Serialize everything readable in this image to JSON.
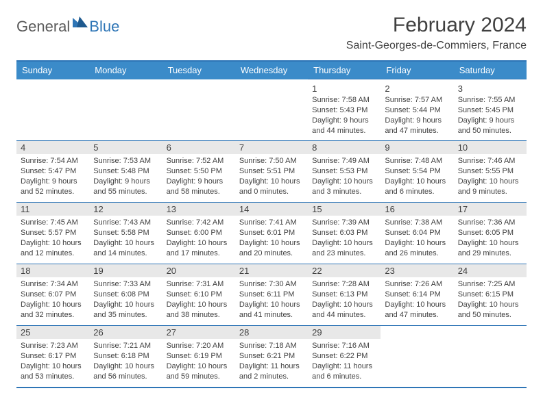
{
  "logo": {
    "word1": "General",
    "word2": "Blue",
    "icon_color": "#2e75b6"
  },
  "title": "February 2024",
  "location": "Saint-Georges-de-Commiers, France",
  "colors": {
    "header_bg": "#3b8bc9",
    "border": "#2e75b6",
    "daynum_bg": "#e8e8e8",
    "text": "#404040"
  },
  "weekdays": [
    "Sunday",
    "Monday",
    "Tuesday",
    "Wednesday",
    "Thursday",
    "Friday",
    "Saturday"
  ],
  "weeks": [
    [
      null,
      null,
      null,
      null,
      {
        "n": "1",
        "sr": "Sunrise: 7:58 AM",
        "ss": "Sunset: 5:43 PM",
        "d1": "Daylight: 9 hours",
        "d2": "and 44 minutes.",
        "shade": false
      },
      {
        "n": "2",
        "sr": "Sunrise: 7:57 AM",
        "ss": "Sunset: 5:44 PM",
        "d1": "Daylight: 9 hours",
        "d2": "and 47 minutes.",
        "shade": false
      },
      {
        "n": "3",
        "sr": "Sunrise: 7:55 AM",
        "ss": "Sunset: 5:45 PM",
        "d1": "Daylight: 9 hours",
        "d2": "and 50 minutes.",
        "shade": false
      }
    ],
    [
      {
        "n": "4",
        "sr": "Sunrise: 7:54 AM",
        "ss": "Sunset: 5:47 PM",
        "d1": "Daylight: 9 hours",
        "d2": "and 52 minutes.",
        "shade": true
      },
      {
        "n": "5",
        "sr": "Sunrise: 7:53 AM",
        "ss": "Sunset: 5:48 PM",
        "d1": "Daylight: 9 hours",
        "d2": "and 55 minutes.",
        "shade": true
      },
      {
        "n": "6",
        "sr": "Sunrise: 7:52 AM",
        "ss": "Sunset: 5:50 PM",
        "d1": "Daylight: 9 hours",
        "d2": "and 58 minutes.",
        "shade": true
      },
      {
        "n": "7",
        "sr": "Sunrise: 7:50 AM",
        "ss": "Sunset: 5:51 PM",
        "d1": "Daylight: 10 hours",
        "d2": "and 0 minutes.",
        "shade": true
      },
      {
        "n": "8",
        "sr": "Sunrise: 7:49 AM",
        "ss": "Sunset: 5:53 PM",
        "d1": "Daylight: 10 hours",
        "d2": "and 3 minutes.",
        "shade": true
      },
      {
        "n": "9",
        "sr": "Sunrise: 7:48 AM",
        "ss": "Sunset: 5:54 PM",
        "d1": "Daylight: 10 hours",
        "d2": "and 6 minutes.",
        "shade": true
      },
      {
        "n": "10",
        "sr": "Sunrise: 7:46 AM",
        "ss": "Sunset: 5:55 PM",
        "d1": "Daylight: 10 hours",
        "d2": "and 9 minutes.",
        "shade": true
      }
    ],
    [
      {
        "n": "11",
        "sr": "Sunrise: 7:45 AM",
        "ss": "Sunset: 5:57 PM",
        "d1": "Daylight: 10 hours",
        "d2": "and 12 minutes.",
        "shade": true
      },
      {
        "n": "12",
        "sr": "Sunrise: 7:43 AM",
        "ss": "Sunset: 5:58 PM",
        "d1": "Daylight: 10 hours",
        "d2": "and 14 minutes.",
        "shade": true
      },
      {
        "n": "13",
        "sr": "Sunrise: 7:42 AM",
        "ss": "Sunset: 6:00 PM",
        "d1": "Daylight: 10 hours",
        "d2": "and 17 minutes.",
        "shade": true
      },
      {
        "n": "14",
        "sr": "Sunrise: 7:41 AM",
        "ss": "Sunset: 6:01 PM",
        "d1": "Daylight: 10 hours",
        "d2": "and 20 minutes.",
        "shade": true
      },
      {
        "n": "15",
        "sr": "Sunrise: 7:39 AM",
        "ss": "Sunset: 6:03 PM",
        "d1": "Daylight: 10 hours",
        "d2": "and 23 minutes.",
        "shade": true
      },
      {
        "n": "16",
        "sr": "Sunrise: 7:38 AM",
        "ss": "Sunset: 6:04 PM",
        "d1": "Daylight: 10 hours",
        "d2": "and 26 minutes.",
        "shade": true
      },
      {
        "n": "17",
        "sr": "Sunrise: 7:36 AM",
        "ss": "Sunset: 6:05 PM",
        "d1": "Daylight: 10 hours",
        "d2": "and 29 minutes.",
        "shade": true
      }
    ],
    [
      {
        "n": "18",
        "sr": "Sunrise: 7:34 AM",
        "ss": "Sunset: 6:07 PM",
        "d1": "Daylight: 10 hours",
        "d2": "and 32 minutes.",
        "shade": true
      },
      {
        "n": "19",
        "sr": "Sunrise: 7:33 AM",
        "ss": "Sunset: 6:08 PM",
        "d1": "Daylight: 10 hours",
        "d2": "and 35 minutes.",
        "shade": true
      },
      {
        "n": "20",
        "sr": "Sunrise: 7:31 AM",
        "ss": "Sunset: 6:10 PM",
        "d1": "Daylight: 10 hours",
        "d2": "and 38 minutes.",
        "shade": true
      },
      {
        "n": "21",
        "sr": "Sunrise: 7:30 AM",
        "ss": "Sunset: 6:11 PM",
        "d1": "Daylight: 10 hours",
        "d2": "and 41 minutes.",
        "shade": true
      },
      {
        "n": "22",
        "sr": "Sunrise: 7:28 AM",
        "ss": "Sunset: 6:13 PM",
        "d1": "Daylight: 10 hours",
        "d2": "and 44 minutes.",
        "shade": true
      },
      {
        "n": "23",
        "sr": "Sunrise: 7:26 AM",
        "ss": "Sunset: 6:14 PM",
        "d1": "Daylight: 10 hours",
        "d2": "and 47 minutes.",
        "shade": true
      },
      {
        "n": "24",
        "sr": "Sunrise: 7:25 AM",
        "ss": "Sunset: 6:15 PM",
        "d1": "Daylight: 10 hours",
        "d2": "and 50 minutes.",
        "shade": true
      }
    ],
    [
      {
        "n": "25",
        "sr": "Sunrise: 7:23 AM",
        "ss": "Sunset: 6:17 PM",
        "d1": "Daylight: 10 hours",
        "d2": "and 53 minutes.",
        "shade": true
      },
      {
        "n": "26",
        "sr": "Sunrise: 7:21 AM",
        "ss": "Sunset: 6:18 PM",
        "d1": "Daylight: 10 hours",
        "d2": "and 56 minutes.",
        "shade": true
      },
      {
        "n": "27",
        "sr": "Sunrise: 7:20 AM",
        "ss": "Sunset: 6:19 PM",
        "d1": "Daylight: 10 hours",
        "d2": "and 59 minutes.",
        "shade": true
      },
      {
        "n": "28",
        "sr": "Sunrise: 7:18 AM",
        "ss": "Sunset: 6:21 PM",
        "d1": "Daylight: 11 hours",
        "d2": "and 2 minutes.",
        "shade": true
      },
      {
        "n": "29",
        "sr": "Sunrise: 7:16 AM",
        "ss": "Sunset: 6:22 PM",
        "d1": "Daylight: 11 hours",
        "d2": "and 6 minutes.",
        "shade": true
      },
      null,
      null
    ]
  ]
}
